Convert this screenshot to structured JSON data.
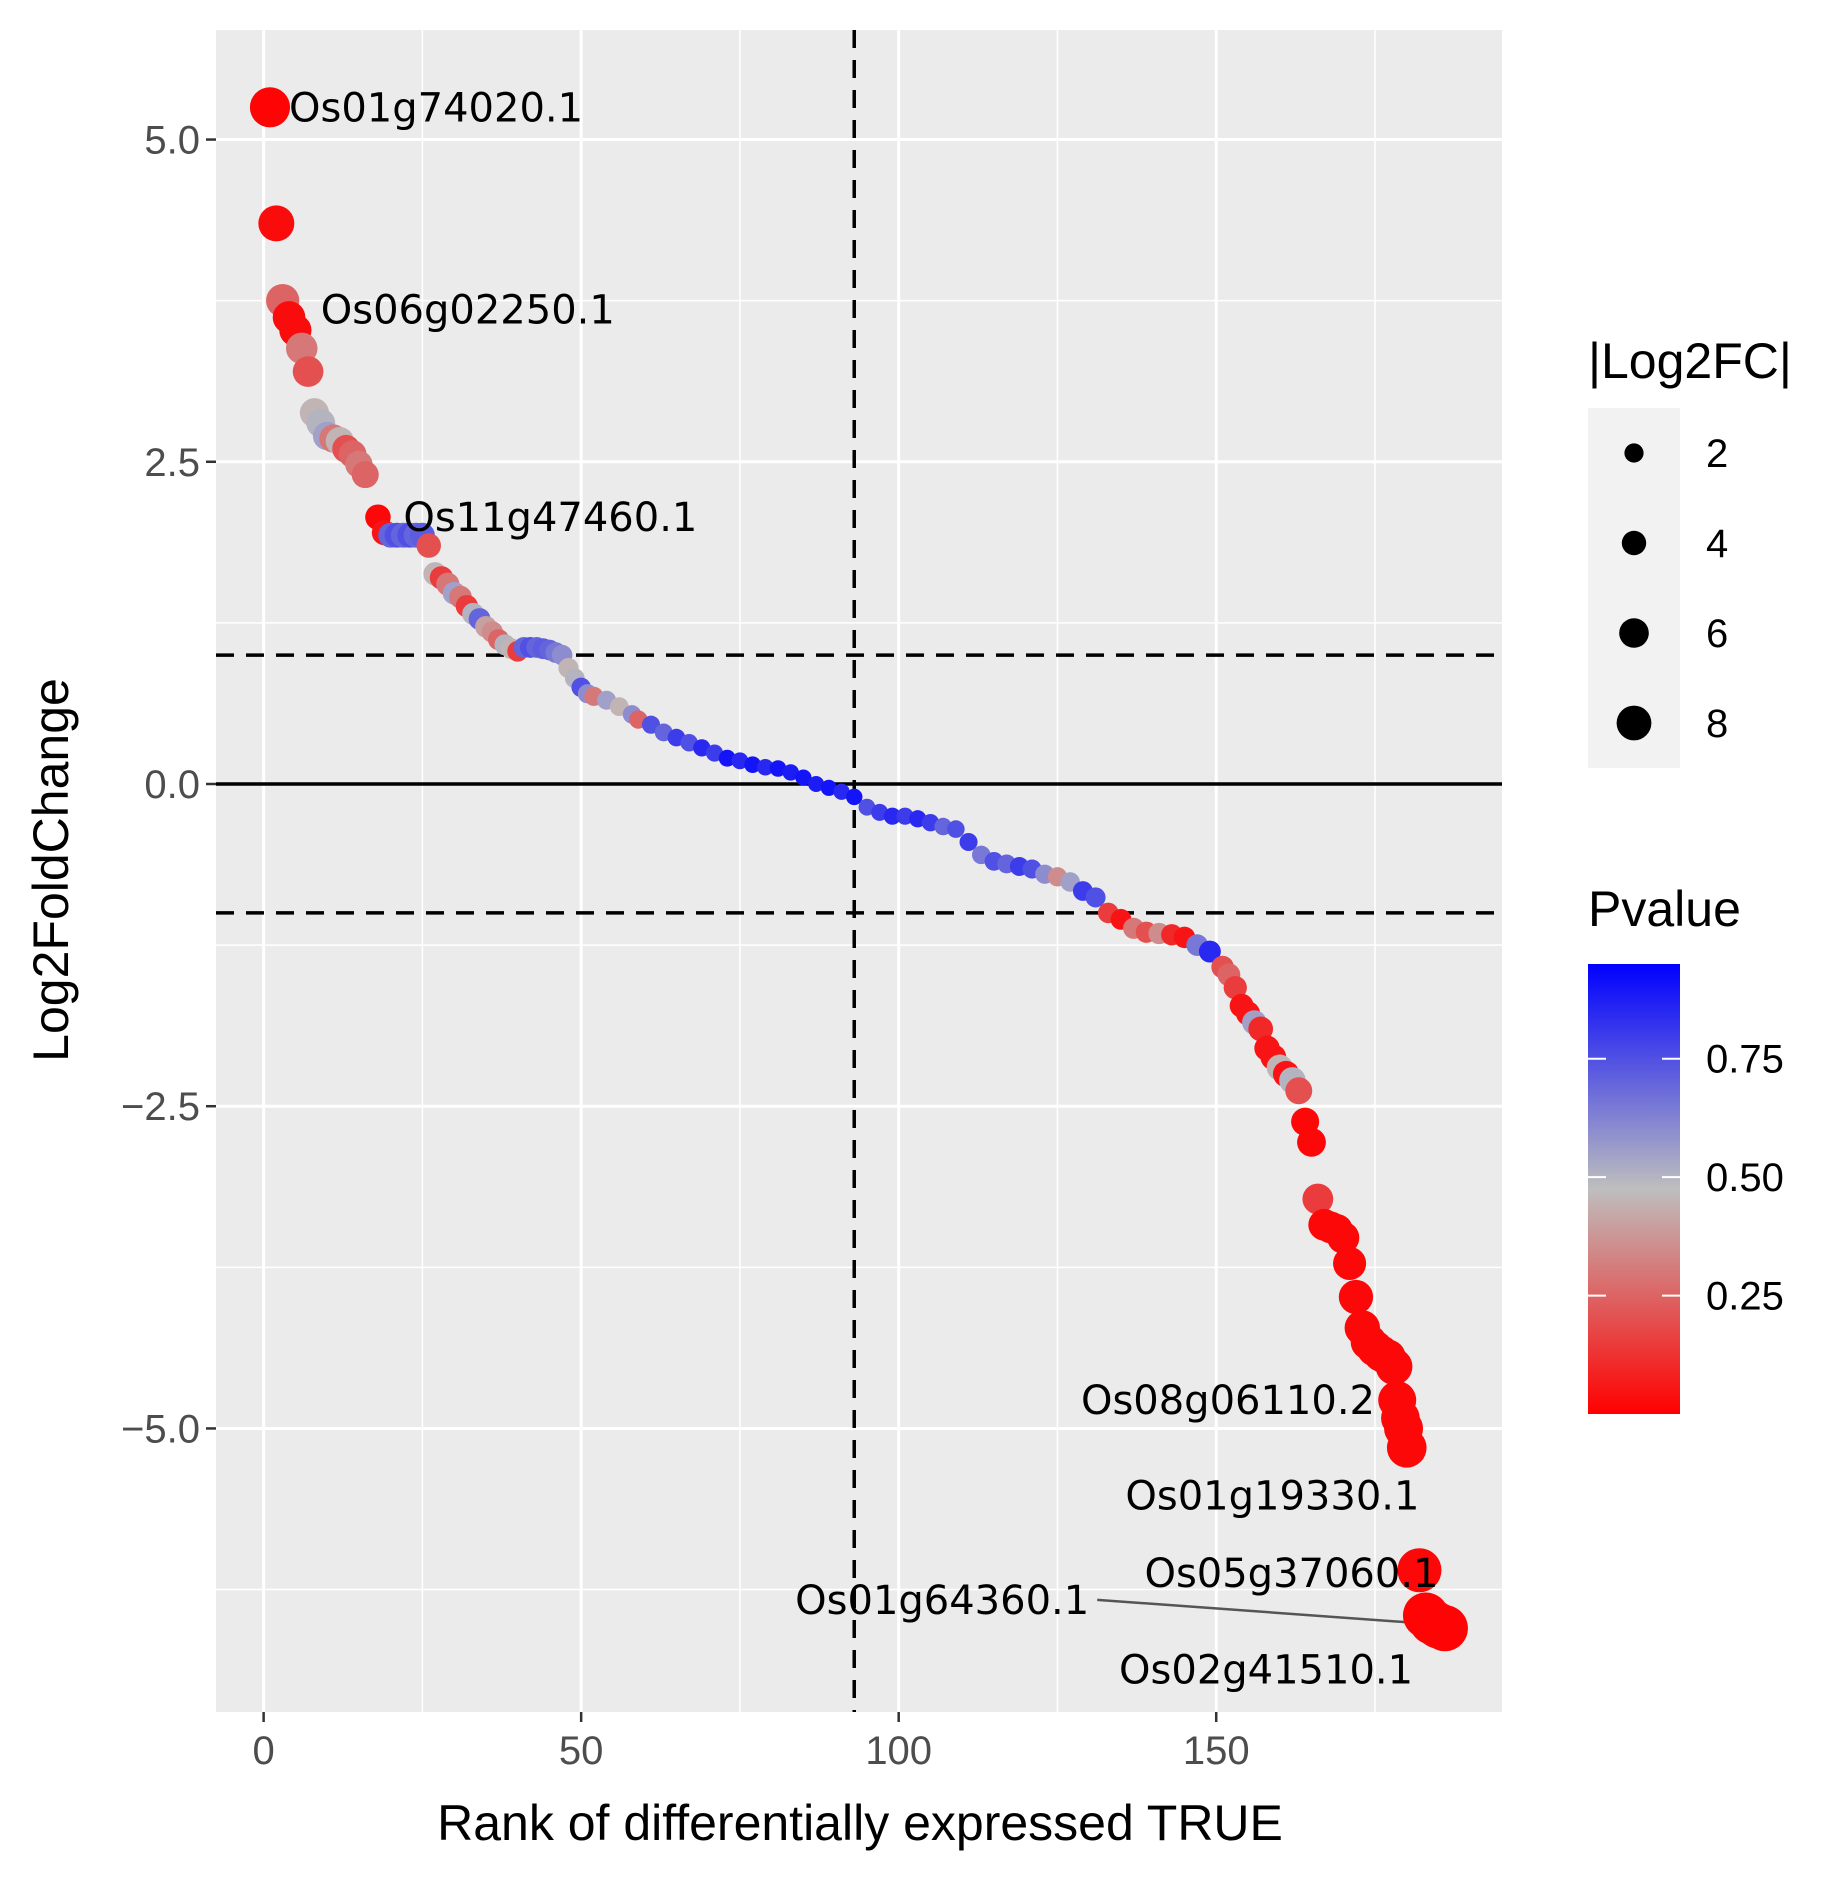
{
  "chart_data": {
    "type": "scatter",
    "xlabel": "Rank of differentially expressed TRUE",
    "ylabel": "Log2FoldChange",
    "xlim": [
      -7.5,
      195
    ],
    "ylim": [
      -7.2,
      5.85
    ],
    "x_ticks": [
      0,
      50,
      100,
      150
    ],
    "x_tick_labels": [
      "0",
      "50",
      "100",
      "150"
    ],
    "y_ticks": [
      -5.0,
      -2.5,
      0.0,
      2.5,
      5.0
    ],
    "y_tick_labels": [
      "−5.0",
      "−2.5",
      "0.0",
      "2.5",
      "5.0"
    ],
    "reference_lines": {
      "horizontal_solid": 0,
      "horizontal_dashed": [
        1,
        -1
      ],
      "vertical_dashed": 93
    },
    "size_legend": {
      "title": "|Log2FC|",
      "values": [
        2,
        4,
        6,
        8
      ],
      "labels": [
        "2",
        "4",
        "6",
        "8"
      ]
    },
    "color_legend": {
      "title": "Pvalue",
      "ticks": [
        0.25,
        0.5,
        0.75
      ],
      "tick_labels": [
        "0.25",
        "0.50",
        "0.75"
      ],
      "range": [
        0.0,
        0.95
      ],
      "low_color": "#ff0000",
      "mid_color": "#bebebe",
      "high_color": "#0000ff"
    },
    "points": [
      {
        "x": 1,
        "y": 5.25,
        "p": 0.01
      },
      {
        "x": 2,
        "y": 4.35,
        "p": 0.03
      },
      {
        "x": 3,
        "y": 3.75,
        "p": 0.25
      },
      {
        "x": 4,
        "y": 3.62,
        "p": 0.03
      },
      {
        "x": 5,
        "y": 3.52,
        "p": 0.03
      },
      {
        "x": 6,
        "y": 3.38,
        "p": 0.3
      },
      {
        "x": 7,
        "y": 3.2,
        "p": 0.2
      },
      {
        "x": 8,
        "y": 2.88,
        "p": 0.45
      },
      {
        "x": 9,
        "y": 2.8,
        "p": 0.5
      },
      {
        "x": 10,
        "y": 2.7,
        "p": 0.55
      },
      {
        "x": 11,
        "y": 2.68,
        "p": 0.3
      },
      {
        "x": 12,
        "y": 2.66,
        "p": 0.45
      },
      {
        "x": 13,
        "y": 2.6,
        "p": 0.2
      },
      {
        "x": 14,
        "y": 2.56,
        "p": 0.25
      },
      {
        "x": 15,
        "y": 2.48,
        "p": 0.3
      },
      {
        "x": 16,
        "y": 2.4,
        "p": 0.25
      },
      {
        "x": 18,
        "y": 2.07,
        "p": 0.02
      },
      {
        "x": 19,
        "y": 1.95,
        "p": 0.05
      },
      {
        "x": 20,
        "y": 1.93,
        "p": 0.7
      },
      {
        "x": 21,
        "y": 1.93,
        "p": 0.75
      },
      {
        "x": 22,
        "y": 1.93,
        "p": 0.7
      },
      {
        "x": 23,
        "y": 1.93,
        "p": 0.75
      },
      {
        "x": 24,
        "y": 1.93,
        "p": 0.7
      },
      {
        "x": 25,
        "y": 1.93,
        "p": 0.72
      },
      {
        "x": 26,
        "y": 1.85,
        "p": 0.2
      },
      {
        "x": 27,
        "y": 1.63,
        "p": 0.45
      },
      {
        "x": 28,
        "y": 1.6,
        "p": 0.15
      },
      {
        "x": 29,
        "y": 1.55,
        "p": 0.3
      },
      {
        "x": 30,
        "y": 1.48,
        "p": 0.55
      },
      {
        "x": 31,
        "y": 1.45,
        "p": 0.3
      },
      {
        "x": 32,
        "y": 1.38,
        "p": 0.15
      },
      {
        "x": 33,
        "y": 1.32,
        "p": 0.5
      },
      {
        "x": 34,
        "y": 1.28,
        "p": 0.7
      },
      {
        "x": 35,
        "y": 1.22,
        "p": 0.4
      },
      {
        "x": 36,
        "y": 1.18,
        "p": 0.35
      },
      {
        "x": 37,
        "y": 1.12,
        "p": 0.25
      },
      {
        "x": 38,
        "y": 1.08,
        "p": 0.5
      },
      {
        "x": 39,
        "y": 1.05,
        "p": 0.45
      },
      {
        "x": 40,
        "y": 1.03,
        "p": 0.15
      },
      {
        "x": 41,
        "y": 1.06,
        "p": 0.7
      },
      {
        "x": 42,
        "y": 1.06,
        "p": 0.75
      },
      {
        "x": 43,
        "y": 1.06,
        "p": 0.7
      },
      {
        "x": 44,
        "y": 1.05,
        "p": 0.72
      },
      {
        "x": 45,
        "y": 1.04,
        "p": 0.7
      },
      {
        "x": 46,
        "y": 1.02,
        "p": 0.65
      },
      {
        "x": 47,
        "y": 1.0,
        "p": 0.6
      },
      {
        "x": 48,
        "y": 0.9,
        "p": 0.45
      },
      {
        "x": 49,
        "y": 0.82,
        "p": 0.5
      },
      {
        "x": 50,
        "y": 0.75,
        "p": 0.75
      },
      {
        "x": 51,
        "y": 0.7,
        "p": 0.6
      },
      {
        "x": 52,
        "y": 0.68,
        "p": 0.3
      },
      {
        "x": 54,
        "y": 0.65,
        "p": 0.55
      },
      {
        "x": 56,
        "y": 0.6,
        "p": 0.45
      },
      {
        "x": 58,
        "y": 0.54,
        "p": 0.6
      },
      {
        "x": 59,
        "y": 0.5,
        "p": 0.25
      },
      {
        "x": 61,
        "y": 0.46,
        "p": 0.75
      },
      {
        "x": 63,
        "y": 0.4,
        "p": 0.7
      },
      {
        "x": 65,
        "y": 0.36,
        "p": 0.8
      },
      {
        "x": 67,
        "y": 0.32,
        "p": 0.75
      },
      {
        "x": 69,
        "y": 0.28,
        "p": 0.85
      },
      {
        "x": 71,
        "y": 0.24,
        "p": 0.8
      },
      {
        "x": 73,
        "y": 0.2,
        "p": 0.9
      },
      {
        "x": 75,
        "y": 0.18,
        "p": 0.85
      },
      {
        "x": 77,
        "y": 0.15,
        "p": 0.9
      },
      {
        "x": 79,
        "y": 0.13,
        "p": 0.85
      },
      {
        "x": 81,
        "y": 0.12,
        "p": 0.9
      },
      {
        "x": 83,
        "y": 0.09,
        "p": 0.88
      },
      {
        "x": 85,
        "y": 0.05,
        "p": 0.9
      },
      {
        "x": 87,
        "y": 0.0,
        "p": 0.88
      },
      {
        "x": 89,
        "y": -0.03,
        "p": 0.9
      },
      {
        "x": 91,
        "y": -0.06,
        "p": 0.85
      },
      {
        "x": 93,
        "y": -0.1,
        "p": 0.9
      },
      {
        "x": 95,
        "y": -0.18,
        "p": 0.75
      },
      {
        "x": 97,
        "y": -0.22,
        "p": 0.8
      },
      {
        "x": 99,
        "y": -0.25,
        "p": 0.85
      },
      {
        "x": 101,
        "y": -0.25,
        "p": 0.8
      },
      {
        "x": 103,
        "y": -0.27,
        "p": 0.85
      },
      {
        "x": 105,
        "y": -0.3,
        "p": 0.8
      },
      {
        "x": 107,
        "y": -0.33,
        "p": 0.7
      },
      {
        "x": 109,
        "y": -0.35,
        "p": 0.75
      },
      {
        "x": 111,
        "y": -0.45,
        "p": 0.8
      },
      {
        "x": 113,
        "y": -0.55,
        "p": 0.65
      },
      {
        "x": 115,
        "y": -0.6,
        "p": 0.75
      },
      {
        "x": 117,
        "y": -0.62,
        "p": 0.7
      },
      {
        "x": 119,
        "y": -0.64,
        "p": 0.8
      },
      {
        "x": 121,
        "y": -0.66,
        "p": 0.75
      },
      {
        "x": 123,
        "y": -0.7,
        "p": 0.6
      },
      {
        "x": 125,
        "y": -0.72,
        "p": 0.35
      },
      {
        "x": 127,
        "y": -0.76,
        "p": 0.55
      },
      {
        "x": 129,
        "y": -0.83,
        "p": 0.8
      },
      {
        "x": 131,
        "y": -0.88,
        "p": 0.75
      },
      {
        "x": 133,
        "y": -1.0,
        "p": 0.15
      },
      {
        "x": 135,
        "y": -1.05,
        "p": 0.05
      },
      {
        "x": 137,
        "y": -1.12,
        "p": 0.3
      },
      {
        "x": 139,
        "y": -1.15,
        "p": 0.2
      },
      {
        "x": 141,
        "y": -1.16,
        "p": 0.35
      },
      {
        "x": 143,
        "y": -1.17,
        "p": 0.1
      },
      {
        "x": 145,
        "y": -1.19,
        "p": 0.05
      },
      {
        "x": 147,
        "y": -1.25,
        "p": 0.65
      },
      {
        "x": 149,
        "y": -1.3,
        "p": 0.85
      },
      {
        "x": 151,
        "y": -1.42,
        "p": 0.2
      },
      {
        "x": 152,
        "y": -1.48,
        "p": 0.25
      },
      {
        "x": 153,
        "y": -1.58,
        "p": 0.15
      },
      {
        "x": 154,
        "y": -1.72,
        "p": 0.05
      },
      {
        "x": 155,
        "y": -1.78,
        "p": 0.05
      },
      {
        "x": 156,
        "y": -1.85,
        "p": 0.55
      },
      {
        "x": 157,
        "y": -1.9,
        "p": 0.1
      },
      {
        "x": 158,
        "y": -2.05,
        "p": 0.05
      },
      {
        "x": 159,
        "y": -2.12,
        "p": 0.05
      },
      {
        "x": 160,
        "y": -2.2,
        "p": 0.45
      },
      {
        "x": 161,
        "y": -2.25,
        "p": 0.05
      },
      {
        "x": 162,
        "y": -2.3,
        "p": 0.5
      },
      {
        "x": 163,
        "y": -2.38,
        "p": 0.2
      },
      {
        "x": 164,
        "y": -2.62,
        "p": 0.02
      },
      {
        "x": 165,
        "y": -2.78,
        "p": 0.02
      },
      {
        "x": 166,
        "y": -3.22,
        "p": 0.15
      },
      {
        "x": 167,
        "y": -3.42,
        "p": 0.02
      },
      {
        "x": 168,
        "y": -3.44,
        "p": 0.02
      },
      {
        "x": 169,
        "y": -3.46,
        "p": 0.02
      },
      {
        "x": 170,
        "y": -3.52,
        "p": 0.02
      },
      {
        "x": 171,
        "y": -3.72,
        "p": 0.02
      },
      {
        "x": 172,
        "y": -3.98,
        "p": 0.02
      },
      {
        "x": 173,
        "y": -4.22,
        "p": 0.02
      },
      {
        "x": 174,
        "y": -4.33,
        "p": 0.02
      },
      {
        "x": 175,
        "y": -4.38,
        "p": 0.02
      },
      {
        "x": 176,
        "y": -4.42,
        "p": 0.02
      },
      {
        "x": 177,
        "y": -4.45,
        "p": 0.02
      },
      {
        "x": 178,
        "y": -4.52,
        "p": 0.02
      },
      {
        "x": 178.5,
        "y": -4.78,
        "p": 0.02
      },
      {
        "x": 179,
        "y": -4.92,
        "p": 0.02
      },
      {
        "x": 179.5,
        "y": -5.0,
        "p": 0.02
      },
      {
        "x": 180,
        "y": -5.15,
        "p": 0.02
      },
      {
        "x": 182,
        "y": -6.1,
        "p": 0.02
      },
      {
        "x": 183,
        "y": -6.45,
        "p": 0.01
      },
      {
        "x": 184,
        "y": -6.5,
        "p": 0.01
      },
      {
        "x": 185,
        "y": -6.53,
        "p": 0.01
      },
      {
        "x": 186,
        "y": -6.55,
        "p": 0.01
      }
    ],
    "annotations": [
      {
        "text": "Os01g74020.1",
        "x": 1,
        "y": 5.25,
        "tx": 4,
        "ty": 5.25,
        "anchor": "start"
      },
      {
        "text": "Os06g02250.1",
        "x": 4,
        "y": 3.62,
        "tx": 9,
        "ty": 3.68,
        "anchor": "start"
      },
      {
        "text": "Os11g47460.1",
        "x": 18,
        "y": 2.07,
        "tx": 22,
        "ty": 2.07,
        "anchor": "start"
      },
      {
        "text": "Os08g06110.2",
        "x": 178.5,
        "y": -4.78,
        "tx": 175,
        "ty": -4.78,
        "anchor": "end"
      },
      {
        "text": "Os01g19330.1",
        "x": 180,
        "y": -5.15,
        "tx": 182,
        "ty": -5.52,
        "anchor": "end"
      },
      {
        "text": "Os05g37060.1",
        "x": 182,
        "y": -6.1,
        "tx": 185,
        "ty": -6.12,
        "anchor": "end"
      },
      {
        "text": "Os01g64360.1",
        "x": 183,
        "y": -6.45,
        "tx": 130,
        "ty": -6.33,
        "anchor": "end",
        "connector": true
      },
      {
        "text": "Os02g41510.1",
        "x": 185,
        "y": -6.53,
        "tx": 181,
        "ty": -6.87,
        "anchor": "end"
      }
    ]
  }
}
